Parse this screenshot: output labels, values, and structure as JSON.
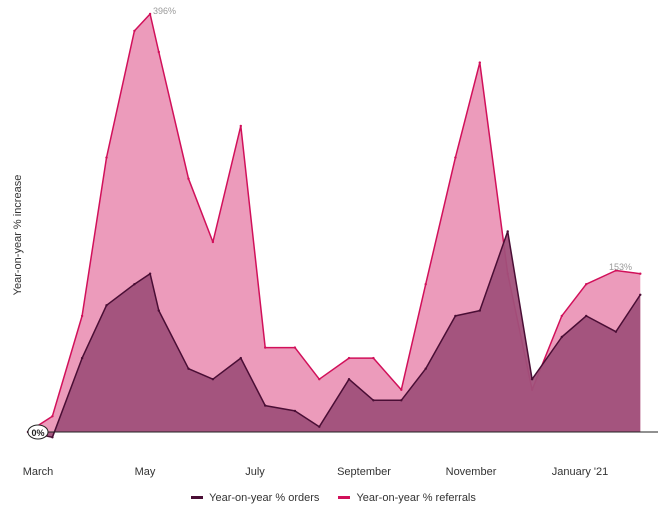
{
  "chart_data": {
    "type": "area",
    "ylabel": "Year-on-year % increase",
    "xlabel": "",
    "x": [
      "2020-03-01",
      "2020-03-15",
      "2020-04-01",
      "2020-04-15",
      "2020-05-01",
      "2020-05-10",
      "2020-05-15",
      "2020-06-01",
      "2020-06-15",
      "2020-07-01",
      "2020-07-15",
      "2020-08-01",
      "2020-08-15",
      "2020-09-01",
      "2020-09-15",
      "2020-10-01",
      "2020-10-15",
      "2020-11-01",
      "2020-11-15",
      "2020-12-01",
      "2020-12-15",
      "2021-01-01",
      "2021-01-15",
      "2021-02-01",
      "2021-02-15"
    ],
    "series": [
      {
        "name": "Year-on-year % referrals",
        "color": "#d1105a",
        "fill": "#ec9bbb",
        "values": [
          0,
          15,
          110,
          260,
          380,
          396,
          360,
          240,
          180,
          290,
          80,
          80,
          50,
          70,
          70,
          40,
          140,
          260,
          350,
          150,
          40,
          110,
          140,
          153,
          150
        ]
      },
      {
        "name": "Year-on-year % orders",
        "color": "#4a0e35",
        "fill": "#a0507a",
        "values": [
          0,
          -5,
          70,
          120,
          140,
          150,
          115,
          60,
          50,
          70,
          25,
          20,
          5,
          50,
          30,
          30,
          60,
          110,
          115,
          190,
          50,
          90,
          110,
          95,
          130
        ]
      }
    ],
    "annotations": [
      "396%",
      "153%",
      "0%"
    ],
    "ylim": [
      -10,
      410
    ],
    "x_ticks": [
      "March",
      "May",
      "July",
      "September",
      "November",
      "January '21"
    ],
    "legend_position": "bottom",
    "grid": false
  },
  "legend": {
    "orders": "Year-on-year % orders",
    "referrals": "Year-on-year % referrals"
  }
}
